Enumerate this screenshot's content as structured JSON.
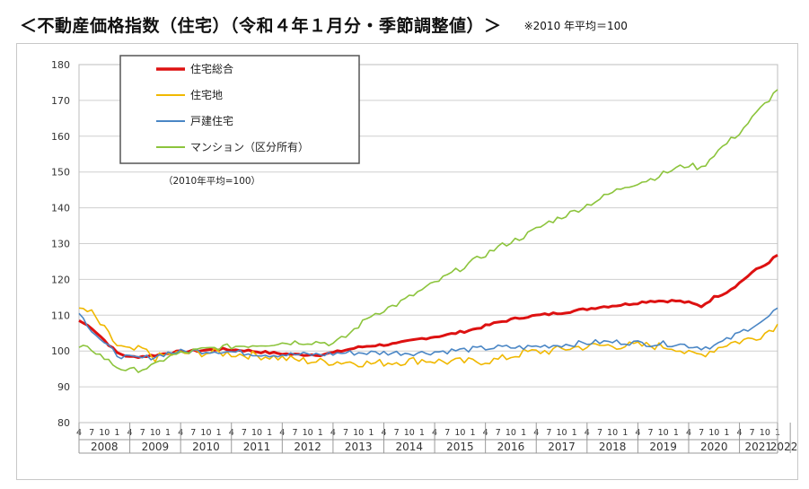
{
  "header": {
    "title": "＜不動産価格指数（住宅）（令和４年１月分・季節調整値）＞",
    "note": "※2010 年平均＝100"
  },
  "chart_data": {
    "type": "line",
    "inner_note": "（2010年平均=100）",
    "xlabel": "",
    "ylabel": "",
    "ylim": [
      80,
      180
    ],
    "yticks": [
      80,
      90,
      100,
      110,
      120,
      130,
      140,
      150,
      160,
      170,
      180
    ],
    "years": [
      "2008",
      "2009",
      "2010",
      "2011",
      "2012",
      "2013",
      "2014",
      "2015",
      "2016",
      "2017",
      "2018",
      "2019",
      "2020",
      "2021",
      "2022"
    ],
    "month_ticks": [
      "4",
      "7",
      "10",
      "1"
    ],
    "legend_position": "top-left",
    "grid": true,
    "x_start": "2008-04",
    "x_end": "2022-01",
    "series": [
      {
        "name": "住宅総合",
        "color": "#dd1111",
        "width": 3,
        "keypoints": [
          [
            "2008-04",
            108.5
          ],
          [
            "2008-07",
            106.5
          ],
          [
            "2008-10",
            103
          ],
          [
            "2009-01",
            99.5
          ],
          [
            "2009-04",
            98.3
          ],
          [
            "2009-07",
            98.5
          ],
          [
            "2009-10",
            98.8
          ],
          [
            "2010-01",
            99.5
          ],
          [
            "2010-07",
            100
          ],
          [
            "2011-01",
            100.5
          ],
          [
            "2011-07",
            100.2
          ],
          [
            "2012-01",
            99.5
          ],
          [
            "2012-07",
            99
          ],
          [
            "2013-01",
            99
          ],
          [
            "2013-04",
            99.5
          ],
          [
            "2013-07",
            100.3
          ],
          [
            "2013-10",
            101
          ],
          [
            "2014-01",
            101.5
          ],
          [
            "2014-07",
            102
          ],
          [
            "2015-01",
            103.5
          ],
          [
            "2015-07",
            104.5
          ],
          [
            "2016-01",
            106
          ],
          [
            "2016-07",
            108
          ],
          [
            "2017-01",
            109.5
          ],
          [
            "2017-07",
            110.3
          ],
          [
            "2018-01",
            111.2
          ],
          [
            "2018-07",
            112.3
          ],
          [
            "2019-01",
            113
          ],
          [
            "2019-07",
            114
          ],
          [
            "2020-01",
            114
          ],
          [
            "2020-04",
            113.5
          ],
          [
            "2020-07",
            112.5
          ],
          [
            "2020-10",
            115
          ],
          [
            "2021-01",
            116.5
          ],
          [
            "2021-04",
            119
          ],
          [
            "2021-07",
            122
          ],
          [
            "2021-10",
            124
          ],
          [
            "2022-01",
            126.8
          ]
        ]
      },
      {
        "name": "住宅地",
        "color": "#f0b800",
        "width": 1.6,
        "keypoints": [
          [
            "2008-04",
            112
          ],
          [
            "2008-07",
            110.5
          ],
          [
            "2008-10",
            106
          ],
          [
            "2009-01",
            101.5
          ],
          [
            "2009-04",
            100
          ],
          [
            "2009-07",
            100.5
          ],
          [
            "2009-10",
            98
          ],
          [
            "2010-01",
            99
          ],
          [
            "2010-07",
            99.5
          ],
          [
            "2011-01",
            99.5
          ],
          [
            "2011-07",
            99
          ],
          [
            "2012-01",
            98.5
          ],
          [
            "2012-07",
            97.5
          ],
          [
            "2013-01",
            97
          ],
          [
            "2013-07",
            97
          ],
          [
            "2014-01",
            96.5
          ],
          [
            "2014-07",
            97
          ],
          [
            "2015-01",
            97.5
          ],
          [
            "2015-07",
            97
          ],
          [
            "2016-01",
            97
          ],
          [
            "2016-07",
            97.5
          ],
          [
            "2017-01",
            99.5
          ],
          [
            "2017-07",
            100
          ],
          [
            "2018-01",
            101
          ],
          [
            "2018-07",
            101.5
          ],
          [
            "2019-01",
            101.5
          ],
          [
            "2019-07",
            101.5
          ],
          [
            "2020-01",
            101
          ],
          [
            "2020-04",
            99
          ],
          [
            "2020-07",
            99
          ],
          [
            "2020-10",
            100.5
          ],
          [
            "2021-01",
            102
          ],
          [
            "2021-07",
            103.5
          ],
          [
            "2021-10",
            105
          ],
          [
            "2022-01",
            107.5
          ]
        ]
      },
      {
        "name": "戸建住宅",
        "color": "#4a86c5",
        "width": 1.6,
        "keypoints": [
          [
            "2008-04",
            110.5
          ],
          [
            "2008-07",
            106
          ],
          [
            "2008-10",
            102
          ],
          [
            "2009-01",
            99
          ],
          [
            "2009-04",
            98
          ],
          [
            "2009-07",
            98
          ],
          [
            "2009-10",
            98.5
          ],
          [
            "2010-01",
            99.5
          ],
          [
            "2010-07",
            100
          ],
          [
            "2011-01",
            100
          ],
          [
            "2011-07",
            99.5
          ],
          [
            "2012-01",
            99
          ],
          [
            "2012-07",
            99
          ],
          [
            "2013-01",
            99
          ],
          [
            "2013-07",
            99.5
          ],
          [
            "2014-01",
            99.5
          ],
          [
            "2014-07",
            99.5
          ],
          [
            "2015-01",
            99.5
          ],
          [
            "2015-07",
            100
          ],
          [
            "2016-01",
            100.5
          ],
          [
            "2016-07",
            101
          ],
          [
            "2017-01",
            101
          ],
          [
            "2017-07",
            101.5
          ],
          [
            "2018-01",
            102
          ],
          [
            "2018-07",
            102.5
          ],
          [
            "2019-01",
            102.5
          ],
          [
            "2019-07",
            102
          ],
          [
            "2020-01",
            102
          ],
          [
            "2020-07",
            101
          ],
          [
            "2020-10",
            101.5
          ],
          [
            "2021-01",
            103
          ],
          [
            "2021-07",
            107
          ],
          [
            "2021-10",
            108.5
          ],
          [
            "2022-01",
            112
          ]
        ]
      },
      {
        "name": "マンション（区分所有）",
        "color": "#8cc43c",
        "width": 1.6,
        "keypoints": [
          [
            "2008-04",
            101
          ],
          [
            "2008-07",
            100.5
          ],
          [
            "2008-10",
            98
          ],
          [
            "2009-01",
            95.5
          ],
          [
            "2009-04",
            94.5
          ],
          [
            "2009-07",
            95
          ],
          [
            "2009-10",
            96
          ],
          [
            "2010-01",
            98.5
          ],
          [
            "2010-07",
            100
          ],
          [
            "2011-01",
            101
          ],
          [
            "2011-07",
            101.5
          ],
          [
            "2012-01",
            102
          ],
          [
            "2012-07",
            102.5
          ],
          [
            "2013-01",
            102.5
          ],
          [
            "2013-04",
            102
          ],
          [
            "2013-07",
            104
          ],
          [
            "2013-10",
            107
          ],
          [
            "2014-01",
            110
          ],
          [
            "2014-07",
            113
          ],
          [
            "2015-01",
            117
          ],
          [
            "2015-07",
            121
          ],
          [
            "2016-01",
            125
          ],
          [
            "2016-07",
            129
          ],
          [
            "2017-01",
            132
          ],
          [
            "2017-07",
            136
          ],
          [
            "2018-01",
            139
          ],
          [
            "2018-07",
            142.5
          ],
          [
            "2019-01",
            146
          ],
          [
            "2019-07",
            148
          ],
          [
            "2020-01",
            151
          ],
          [
            "2020-04",
            152
          ],
          [
            "2020-07",
            151
          ],
          [
            "2020-10",
            155
          ],
          [
            "2021-01",
            158
          ],
          [
            "2021-04",
            161
          ],
          [
            "2021-07",
            165
          ],
          [
            "2021-10",
            169
          ],
          [
            "2022-01",
            173
          ]
        ]
      }
    ]
  }
}
